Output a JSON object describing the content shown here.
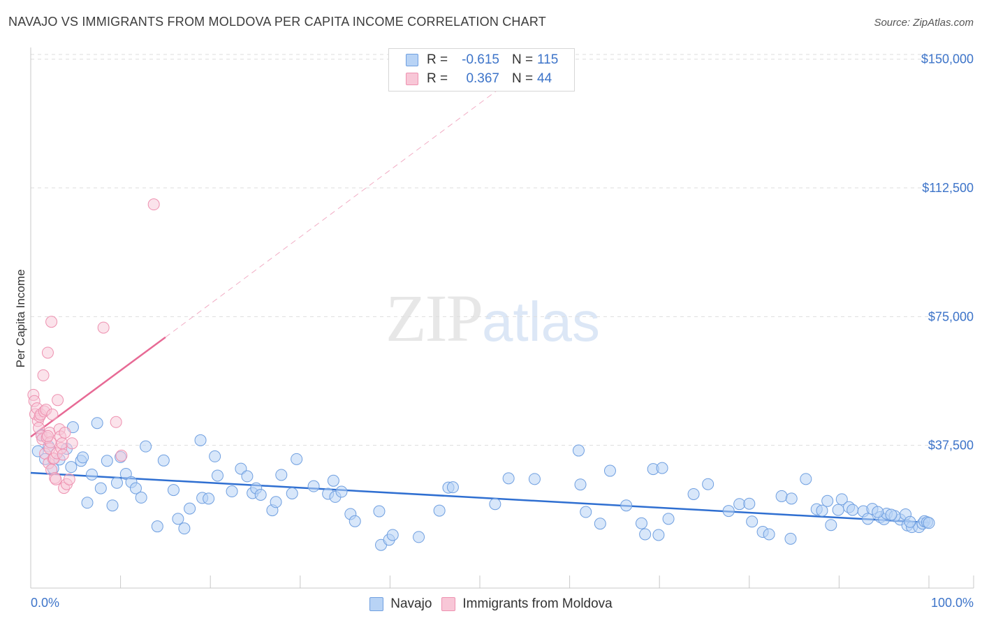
{
  "title": "NAVAJO VS IMMIGRANTS FROM MOLDOVA PER CAPITA INCOME CORRELATION CHART",
  "source": "Source: ZipAtlas.com",
  "watermark": {
    "zip": "ZIP",
    "atlas": "atlas"
  },
  "colors": {
    "navajo_fill": "#b8d3f5",
    "navajo_stroke": "#6f9fe0",
    "navajo_line": "#2f6fd1",
    "moldova_fill": "#f8c7d7",
    "moldova_stroke": "#ee91b0",
    "moldova_line": "#e76a95",
    "tick_text": "#3d74c9",
    "grid": "#dddddd"
  },
  "legend_top": [
    {
      "r_label": "R =",
      "r_value": "-0.615",
      "n_label": "N =",
      "n_value": "115"
    },
    {
      "r_label": "R =",
      "r_value": "0.367",
      "n_label": "N =",
      "n_value": "44"
    }
  ],
  "legend_bottom": [
    "Navajo",
    "Immigrants from Moldova"
  ],
  "chart_data": {
    "type": "scatter",
    "title": "NAVAJO VS IMMIGRANTS FROM MOLDOVA PER CAPITA INCOME CORRELATION CHART",
    "xlabel": "",
    "ylabel": "Per Capita Income",
    "xlim": [
      0,
      100
    ],
    "ylim": [
      0,
      153000
    ],
    "x_tick_labels": [
      "0.0%",
      "100.0%"
    ],
    "y_ticks": [
      37500,
      75000,
      112500,
      150000
    ],
    "y_tick_labels": [
      "$37,500",
      "$75,000",
      "$112,500",
      "$150,000"
    ],
    "grid": true,
    "series": [
      {
        "name": "Navajo",
        "r": -0.615,
        "n": 115,
        "trend": {
          "x0": 0,
          "y0": 29500,
          "x1": 100,
          "y1": 15000
        },
        "points": [
          [
            0.8,
            35800
          ],
          [
            1.2,
            40500
          ],
          [
            1.6,
            33500
          ],
          [
            2.0,
            37200
          ],
          [
            2.5,
            30800
          ],
          [
            3.2,
            33400
          ],
          [
            4.0,
            36500
          ],
          [
            4.5,
            31200
          ],
          [
            4.7,
            42800
          ],
          [
            5.6,
            33000
          ],
          [
            5.8,
            34000
          ],
          [
            6.3,
            20800
          ],
          [
            6.8,
            29000
          ],
          [
            7.4,
            44000
          ],
          [
            7.8,
            25000
          ],
          [
            8.5,
            33000
          ],
          [
            9.1,
            20000
          ],
          [
            9.6,
            26600
          ],
          [
            10.0,
            34100
          ],
          [
            10.6,
            29200
          ],
          [
            11.2,
            26800
          ],
          [
            11.7,
            25000
          ],
          [
            12.3,
            22300
          ],
          [
            12.8,
            37200
          ],
          [
            14.1,
            13900
          ],
          [
            14.8,
            33100
          ],
          [
            15.9,
            24500
          ],
          [
            16.4,
            16100
          ],
          [
            17.1,
            13300
          ],
          [
            17.7,
            19100
          ],
          [
            18.9,
            39000
          ],
          [
            19.1,
            22200
          ],
          [
            19.8,
            22000
          ],
          [
            20.5,
            34300
          ],
          [
            20.8,
            28700
          ],
          [
            22.4,
            24100
          ],
          [
            23.4,
            30700
          ],
          [
            24.1,
            28500
          ],
          [
            24.7,
            23600
          ],
          [
            25.1,
            25000
          ],
          [
            25.6,
            23100
          ],
          [
            26.9,
            18600
          ],
          [
            27.3,
            21000
          ],
          [
            27.9,
            28900
          ],
          [
            29.1,
            23500
          ],
          [
            29.6,
            33500
          ],
          [
            31.5,
            25600
          ],
          [
            33.1,
            23400
          ],
          [
            33.7,
            27200
          ],
          [
            33.9,
            22500
          ],
          [
            34.6,
            24000
          ],
          [
            35.6,
            17500
          ],
          [
            36.1,
            15400
          ],
          [
            38.8,
            18300
          ],
          [
            39.0,
            8500
          ],
          [
            39.9,
            10000
          ],
          [
            40.3,
            11400
          ],
          [
            43.2,
            10800
          ],
          [
            45.5,
            18500
          ],
          [
            46.5,
            25200
          ],
          [
            47.0,
            25300
          ],
          [
            51.7,
            20400
          ],
          [
            53.2,
            27900
          ],
          [
            56.1,
            27700
          ],
          [
            61.0,
            36000
          ],
          [
            61.2,
            26100
          ],
          [
            61.8,
            18100
          ],
          [
            63.4,
            14700
          ],
          [
            64.5,
            30100
          ],
          [
            66.3,
            20000
          ],
          [
            68.0,
            14800
          ],
          [
            68.4,
            11600
          ],
          [
            69.3,
            30600
          ],
          [
            69.9,
            11400
          ],
          [
            70.3,
            30900
          ],
          [
            71.0,
            16100
          ],
          [
            73.8,
            23300
          ],
          [
            75.4,
            26200
          ],
          [
            77.7,
            18400
          ],
          [
            78.9,
            20400
          ],
          [
            80.0,
            20500
          ],
          [
            80.3,
            15300
          ],
          [
            81.5,
            12300
          ],
          [
            82.2,
            11600
          ],
          [
            83.6,
            22700
          ],
          [
            84.6,
            10300
          ],
          [
            84.7,
            22000
          ],
          [
            86.3,
            27700
          ],
          [
            87.5,
            18900
          ],
          [
            88.1,
            18500
          ],
          [
            88.7,
            21300
          ],
          [
            89.1,
            14300
          ],
          [
            89.9,
            18700
          ],
          [
            90.3,
            21800
          ],
          [
            91.1,
            19500
          ],
          [
            91.5,
            18700
          ],
          [
            92.7,
            18300
          ],
          [
            93.2,
            16100
          ],
          [
            93.7,
            19000
          ],
          [
            94.6,
            16600
          ],
          [
            95.0,
            16000
          ],
          [
            95.3,
            17600
          ],
          [
            96.8,
            15900
          ],
          [
            97.4,
            17400
          ],
          [
            97.6,
            14200
          ],
          [
            98.1,
            13700
          ],
          [
            98.9,
            13700
          ],
          [
            99.3,
            14700
          ],
          [
            99.5,
            15400
          ],
          [
            99.8,
            15100
          ],
          [
            97.9,
            15200
          ],
          [
            96.2,
            16900
          ],
          [
            95.8,
            17300
          ],
          [
            94.3,
            18100
          ],
          [
            100.0,
            14900
          ]
        ]
      },
      {
        "name": "Immigrants from Moldova",
        "r": 0.367,
        "n": 44,
        "trend_solid": {
          "x0": 0,
          "y0": 40000,
          "x1": 15,
          "y1": 69000
        },
        "trend_dashed": {
          "x0": 15,
          "y0": 69000,
          "x1": 53,
          "y1": 143000
        },
        "points": [
          [
            0.3,
            52200
          ],
          [
            0.4,
            50400
          ],
          [
            0.5,
            46600
          ],
          [
            0.7,
            48300
          ],
          [
            0.8,
            44600
          ],
          [
            0.9,
            42600
          ],
          [
            1.0,
            45900
          ],
          [
            1.1,
            46500
          ],
          [
            1.2,
            40300
          ],
          [
            1.3,
            39300
          ],
          [
            1.4,
            57900
          ],
          [
            1.5,
            47400
          ],
          [
            1.6,
            35100
          ],
          [
            1.7,
            47900
          ],
          [
            1.8,
            39700
          ],
          [
            1.9,
            64500
          ],
          [
            2.0,
            32300
          ],
          [
            2.1,
            36600
          ],
          [
            2.1,
            41200
          ],
          [
            2.2,
            38400
          ],
          [
            2.3,
            30400
          ],
          [
            2.4,
            46500
          ],
          [
            2.5,
            33600
          ],
          [
            2.6,
            33700
          ],
          [
            2.7,
            28000
          ],
          [
            2.8,
            27600
          ],
          [
            2.9,
            35200
          ],
          [
            3.0,
            50700
          ],
          [
            3.2,
            42200
          ],
          [
            3.3,
            40100
          ],
          [
            3.4,
            36700
          ],
          [
            3.5,
            38100
          ],
          [
            3.6,
            34800
          ],
          [
            3.7,
            25100
          ],
          [
            3.8,
            41200
          ],
          [
            4.0,
            26200
          ],
          [
            4.3,
            27600
          ],
          [
            4.6,
            38100
          ],
          [
            2.3,
            73500
          ],
          [
            8.1,
            71800
          ],
          [
            9.5,
            44300
          ],
          [
            10.1,
            34500
          ],
          [
            13.7,
            107700
          ],
          [
            1.9,
            40200
          ]
        ]
      }
    ]
  }
}
